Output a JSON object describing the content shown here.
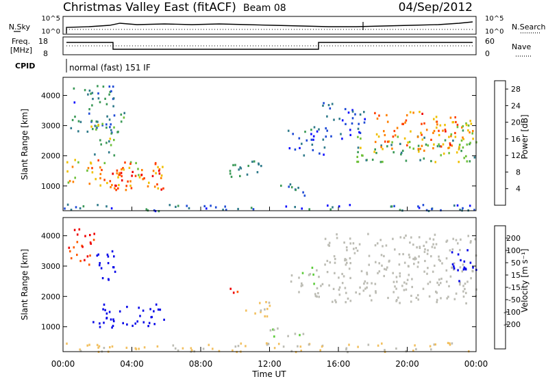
{
  "header": {
    "title": "Christmas Valley East (fitACF)",
    "beam": "Beam 08",
    "date": "04/Sep/2012"
  },
  "strips": {
    "nsky_label": "N.Sky",
    "nsearch_label": "N.Search",
    "nsky_ticks": [
      "10^5",
      "10^0"
    ],
    "nsearch_ticks": [
      "10^5",
      "10^0"
    ],
    "freq_label": "Freq.",
    "freq_unit": "[MHz]",
    "freq_ticks": [
      "18",
      "8"
    ],
    "nave_label": "Nave",
    "nave_ticks": [
      "60",
      "0"
    ],
    "cpid_label": "CPID",
    "cpid_text": "normal (fast) 151 IF"
  },
  "colors": {
    "power_scale": [
      "#1010ff",
      "#1f4bd6",
      "#2f7a8a",
      "#3c9a58",
      "#6fc03a",
      "#f0c000",
      "#ff8000",
      "#ff4000",
      "#ee0000"
    ],
    "velocity_scale": [
      "#ee0000",
      "#ff5a00",
      "#ff9a00",
      "#f2c060",
      "#bcbcb4",
      "#bcbcb4",
      "#5ccc3a",
      "#2e8a5a",
      "#2060c0",
      "#0a0ae8"
    ]
  },
  "chart_data": [
    {
      "type": "heatmap",
      "panel": "power",
      "xlabel": "",
      "ylabel": "Slant Range [km]",
      "xlim": [
        0,
        24
      ],
      "ylim": [
        180,
        4600
      ],
      "yticks": [
        "1000",
        "2000",
        "3000",
        "4000"
      ],
      "colorbar_label": "Power [dB]",
      "colorbar_ticks": [
        "4",
        "8",
        "12",
        "16",
        "20",
        "24",
        "28"
      ],
      "colorbar_range": [
        0,
        30
      ],
      "regions": [
        {
          "t": [
            0.2,
            6.0
          ],
          "r": [
            900,
            1900
          ],
          "v": 20
        },
        {
          "t": [
            2.6,
            5.8
          ],
          "r": [
            900,
            1600
          ],
          "v": 26
        },
        {
          "t": [
            0.3,
            3.0
          ],
          "r": [
            2800,
            4400
          ],
          "v": 8
        },
        {
          "t": [
            1.6,
            3.2
          ],
          "r": [
            2000,
            3200
          ],
          "v": 13
        },
        {
          "t": [
            3.0,
            3.6
          ],
          "r": [
            2800,
            3600
          ],
          "v": 12
        },
        {
          "t": [
            9.4,
            11.6
          ],
          "r": [
            1300,
            2000
          ],
          "v": 11
        },
        {
          "t": [
            12.0,
            14.0
          ],
          "r": [
            700,
            1100
          ],
          "v": 9
        },
        {
          "t": [
            13.0,
            15.2
          ],
          "r": [
            2000,
            3000
          ],
          "v": 6
        },
        {
          "t": [
            15.0,
            17.5
          ],
          "r": [
            2600,
            3800
          ],
          "v": 5
        },
        {
          "t": [
            17.0,
            24.0
          ],
          "r": [
            1800,
            2700
          ],
          "v": 14
        },
        {
          "t": [
            18.0,
            23.2
          ],
          "r": [
            2200,
            3500
          ],
          "v": 22
        },
        {
          "t": [
            22.0,
            24.0
          ],
          "r": [
            2300,
            3200
          ],
          "v": 18
        },
        {
          "t": [
            0.0,
            24.0
          ],
          "r": [
            200,
            420
          ],
          "v": 6
        }
      ]
    },
    {
      "type": "heatmap",
      "panel": "velocity",
      "xlabel": "Time UT",
      "ylabel": "Slant Range [km]",
      "xlim": [
        0,
        24
      ],
      "ylim": [
        180,
        4600
      ],
      "xticks": [
        "00:00",
        "04:00",
        "08:00",
        "12:00",
        "16:00",
        "20:00",
        "00:00"
      ],
      "yticks": [
        "1000",
        "2000",
        "3000",
        "4000"
      ],
      "colorbar_label": "Velocity [m s⁻¹]",
      "colorbar_ticks": [
        "200",
        "100",
        "50",
        "15",
        "-15",
        "-50",
        "-100",
        "-200"
      ],
      "colorbar_range": [
        -250,
        250
      ],
      "regions": [
        {
          "t": [
            1.6,
            5.9
          ],
          "r": [
            1000,
            1800
          ],
          "v": 230
        },
        {
          "t": [
            0.3,
            1.8
          ],
          "r": [
            3000,
            4300
          ],
          "v": -200
        },
        {
          "t": [
            1.8,
            3.0
          ],
          "r": [
            2400,
            3600
          ],
          "v": 220
        },
        {
          "t": [
            9.6,
            10.2
          ],
          "r": [
            2000,
            2500
          ],
          "v": -180
        },
        {
          "t": [
            10.2,
            12.0
          ],
          "r": [
            1300,
            1900
          ],
          "v": -70
        },
        {
          "t": [
            12.0,
            14.0
          ],
          "r": [
            700,
            1100
          ],
          "v": 30
        },
        {
          "t": [
            13.0,
            15.0
          ],
          "r": [
            2000,
            3000
          ],
          "v": 30
        },
        {
          "t": [
            15.0,
            24.0
          ],
          "r": [
            1800,
            4100
          ],
          "v": 0
        },
        {
          "t": [
            22.5,
            24.0
          ],
          "r": [
            2500,
            3600
          ],
          "v": 230
        },
        {
          "t": [
            0.0,
            24.0
          ],
          "r": [
            200,
            500
          ],
          "v": -60
        }
      ]
    }
  ]
}
